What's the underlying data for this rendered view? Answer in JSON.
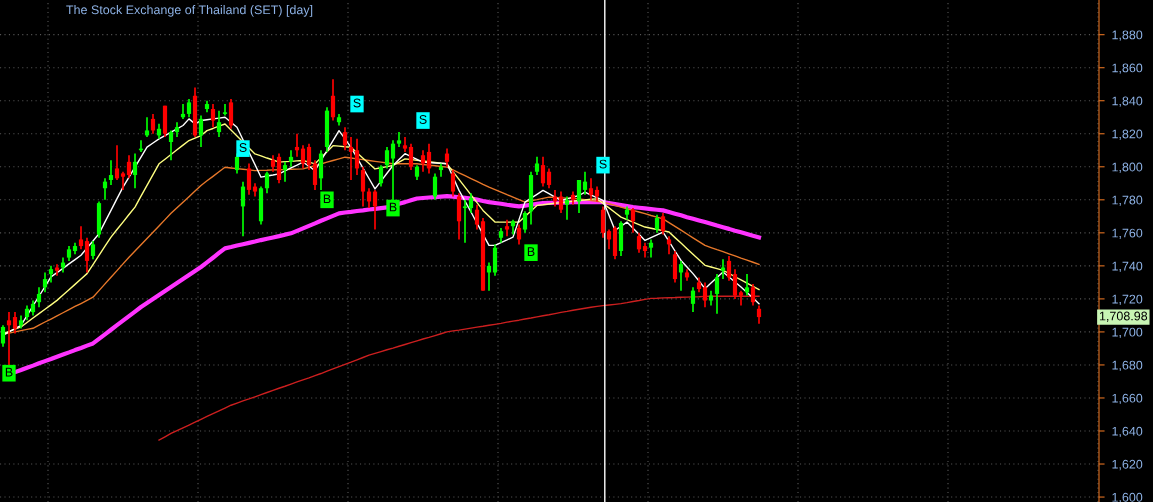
{
  "chart_data": {
    "type": "candlestick",
    "title": "The Stock Exchange of Thailand (SET) [day]",
    "categories": [
      null,
      null,
      null,
      null,
      null,
      null,
      null,
      null,
      null,
      null,
      null,
      null,
      null,
      null,
      null,
      null,
      null,
      null,
      null,
      null,
      null,
      null,
      null,
      null,
      null,
      null,
      null,
      null,
      null,
      null,
      null,
      null,
      null,
      null,
      null,
      null,
      null,
      null,
      null,
      null,
      null,
      null,
      null,
      null,
      null,
      null,
      null,
      null,
      null,
      null,
      null,
      null,
      null,
      null,
      null,
      null,
      null,
      null,
      null,
      null,
      null,
      null,
      null,
      null,
      null,
      null,
      null,
      null,
      null,
      null,
      null,
      null,
      null,
      null,
      null,
      null,
      null,
      null,
      null,
      null,
      null,
      null,
      null,
      null,
      null,
      null,
      null,
      null,
      null,
      null,
      null,
      null,
      null,
      null,
      null,
      null,
      null,
      null,
      null,
      null,
      null,
      null,
      null,
      null,
      null,
      null,
      null,
      null,
      null,
      null,
      null,
      null,
      null,
      null,
      null,
      null,
      null,
      null,
      null,
      null,
      null,
      null,
      null,
      null,
      null,
      null,
      null
    ],
    "ohlc": [
      [
        1693,
        1704,
        1691,
        1703
      ],
      [
        1707,
        1712,
        1679,
        1704
      ],
      [
        1709,
        1712,
        1699,
        1702
      ],
      [
        1704,
        1710,
        1702,
        1707
      ],
      [
        1709,
        1716,
        1707,
        1714
      ],
      [
        1712,
        1719,
        1710,
        1717
      ],
      [
        1718,
        1727,
        1715,
        1723
      ],
      [
        1727,
        1736,
        1724,
        1732
      ],
      [
        1735,
        1740,
        1730,
        1738
      ],
      [
        1739,
        1741,
        1734,
        1737
      ],
      [
        1739,
        1745,
        1736,
        1742
      ],
      [
        1745,
        1752,
        1743,
        1750
      ],
      [
        1749,
        1754,
        1747,
        1752
      ],
      [
        1756,
        1764,
        1750,
        1752
      ],
      [
        1755,
        1757,
        1736,
        1743
      ],
      [
        1746,
        1755,
        1744,
        1753
      ],
      [
        1759,
        1779,
        1757,
        1778
      ],
      [
        1787,
        1793,
        1780,
        1791
      ],
      [
        1792,
        1804,
        1789,
        1795
      ],
      [
        1799,
        1813,
        1792,
        1793
      ],
      [
        1796,
        1797,
        1786,
        1794
      ],
      [
        1803,
        1807,
        1793,
        1795
      ],
      [
        1795,
        1808,
        1787,
        1803
      ],
      [
        1810,
        1816,
        1809,
        1811
      ],
      [
        1819,
        1830,
        1818,
        1822
      ],
      [
        1829,
        1832,
        1820,
        1822
      ],
      [
        1819,
        1826,
        1817,
        1823
      ],
      [
        1837,
        1837,
        1818,
        1820
      ],
      [
        1815,
        1822,
        1804,
        1821
      ],
      [
        1821,
        1827,
        1818,
        1824
      ],
      [
        1830,
        1838,
        1829,
        1832
      ],
      [
        1832,
        1841,
        1830,
        1839
      ],
      [
        1843,
        1848,
        1818,
        1819
      ],
      [
        1819,
        1831,
        1812,
        1829
      ],
      [
        1835,
        1840,
        1833,
        1838
      ],
      [
        1835,
        1838,
        1824,
        1828
      ],
      [
        1821,
        1834,
        1818,
        1827
      ],
      [
        1832,
        1838,
        1831,
        1833
      ],
      [
        1839,
        1841,
        1823,
        1825
      ],
      [
        1798,
        1808,
        1796,
        1806
      ],
      [
        1776,
        1791,
        1758,
        1788
      ],
      [
        1799,
        1802,
        1783,
        1786
      ],
      [
        1788,
        1790,
        1782,
        1785
      ],
      [
        1767,
        1788,
        1765,
        1787
      ],
      [
        1787,
        1797,
        1784,
        1796
      ],
      [
        1804,
        1807,
        1797,
        1800
      ],
      [
        1806,
        1808,
        1790,
        1792
      ],
      [
        1798,
        1803,
        1791,
        1801
      ],
      [
        1803,
        1810,
        1800,
        1806
      ],
      [
        1812,
        1820,
        1806,
        1810
      ],
      [
        1811,
        1813,
        1799,
        1802
      ],
      [
        1812,
        1814,
        1798,
        1801
      ],
      [
        1802,
        1804,
        1786,
        1789
      ],
      [
        1793,
        1810,
        1786,
        1808
      ],
      [
        1812,
        1836,
        1809,
        1834
      ],
      [
        1843,
        1853,
        1828,
        1830
      ],
      [
        1827,
        1832,
        1825,
        1830
      ],
      [
        1821,
        1824,
        1810,
        1813
      ],
      [
        1812,
        1818,
        1792,
        1809
      ],
      [
        1810,
        1817,
        1795,
        1799
      ],
      [
        1798,
        1800,
        1776,
        1785
      ],
      [
        1785,
        1787,
        1775,
        1779
      ],
      [
        1785,
        1786,
        1762,
        1776
      ],
      [
        1790,
        1801,
        1788,
        1800
      ],
      [
        1801,
        1812,
        1799,
        1810
      ],
      [
        1805,
        1816,
        1775,
        1814
      ],
      [
        1814,
        1821,
        1812,
        1816
      ],
      [
        1813,
        1818,
        1809,
        1811
      ],
      [
        1812,
        1814,
        1798,
        1800
      ],
      [
        1794,
        1801,
        1792,
        1800
      ],
      [
        1807,
        1810,
        1797,
        1802
      ],
      [
        1809,
        1814,
        1796,
        1799
      ],
      [
        1782,
        1796,
        1780,
        1794
      ],
      [
        1798,
        1802,
        1794,
        1800
      ],
      [
        1808,
        1811,
        1800,
        1803
      ],
      [
        1796,
        1798,
        1782,
        1785
      ],
      [
        1782,
        1784,
        1756,
        1767
      ],
      [
        1775,
        1780,
        1754,
        1776
      ],
      [
        1775,
        1784,
        1772,
        1781
      ],
      [
        1774,
        1777,
        1762,
        1765
      ],
      [
        1767,
        1769,
        1725,
        1725
      ],
      [
        1736,
        1742,
        1725,
        1740
      ],
      [
        1736,
        1753,
        1734,
        1751
      ],
      [
        1757,
        1763,
        1754,
        1761
      ],
      [
        1764,
        1768,
        1758,
        1762
      ],
      [
        1764,
        1768,
        1759,
        1767
      ],
      [
        1763,
        1765,
        1753,
        1756
      ],
      [
        1762,
        1773,
        1760,
        1772
      ],
      [
        1773,
        1797,
        1765,
        1795
      ],
      [
        1797,
        1806,
        1795,
        1802
      ],
      [
        1801,
        1806,
        1788,
        1790
      ],
      [
        1797,
        1799,
        1787,
        1789
      ],
      [
        1782,
        1786,
        1776,
        1779
      ],
      [
        1782,
        1785,
        1772,
        1774
      ],
      [
        1777,
        1782,
        1768,
        1780
      ],
      [
        1783,
        1785,
        1777,
        1780
      ],
      [
        1779,
        1792,
        1772,
        1792
      ],
      [
        1786,
        1797,
        1783,
        1791
      ],
      [
        1787,
        1793,
        1780,
        1783
      ],
      [
        1786,
        1788,
        1779,
        1782
      ],
      [
        1774,
        1776,
        1757,
        1760
      ],
      [
        1761,
        1762,
        1750,
        1756
      ],
      [
        1763,
        1764,
        1744,
        1746
      ],
      [
        1749,
        1767,
        1746,
        1766
      ],
      [
        1771,
        1776,
        1768,
        1774
      ],
      [
        1774,
        1775,
        1760,
        1767
      ],
      [
        1758,
        1760,
        1748,
        1750
      ],
      [
        1752,
        1754,
        1745,
        1749
      ],
      [
        1751,
        1756,
        1745,
        1754
      ],
      [
        1762,
        1771,
        1760,
        1769
      ],
      [
        1770,
        1772,
        1759,
        1761
      ],
      [
        1756,
        1758,
        1747,
        1753
      ],
      [
        1747,
        1749,
        1730,
        1732
      ],
      [
        1736,
        1743,
        1725,
        1741
      ],
      [
        1736,
        1738,
        1731,
        1733
      ],
      [
        1717,
        1727,
        1712,
        1725
      ],
      [
        1730,
        1733,
        1724,
        1726
      ],
      [
        1727,
        1730,
        1715,
        1719
      ],
      [
        1719,
        1725,
        1716,
        1722
      ],
      [
        1723,
        1735,
        1711,
        1733
      ],
      [
        1737,
        1744,
        1732,
        1739
      ],
      [
        1743,
        1746,
        1731,
        1733
      ],
      [
        1735,
        1738,
        1720,
        1722
      ],
      [
        1724,
        1725,
        1716,
        1722
      ],
      [
        1724,
        1735,
        1722,
        1727
      ],
      [
        1727,
        1729,
        1716,
        1718
      ],
      [
        1714,
        1716,
        1705,
        1708.98
      ]
    ],
    "series": [
      {
        "type": "line",
        "color": "#cc1f1f",
        "values": [
          null,
          null,
          null,
          null,
          null,
          null,
          null,
          null,
          null,
          null,
          null,
          null,
          null,
          null,
          null,
          null,
          null,
          null,
          null,
          null,
          null,
          null,
          null,
          null,
          null,
          null,
          1634.5,
          1636.5,
          1638.5,
          1640.2,
          1641.9,
          1643.6,
          1645.3,
          1647.1,
          1648.8,
          1650.5,
          1652.2,
          1653.9,
          1655.6,
          1656.9,
          1658.2,
          1659.4,
          1660.7,
          1662.0,
          1663.3,
          1664.6,
          1665.9,
          1667.1,
          1668.4,
          1669.7,
          1671.0,
          1672.2,
          1673.5,
          1674.8,
          1676.2,
          1677.6,
          1679.0,
          1680.4,
          1681.7,
          1683.1,
          1684.5,
          1685.9,
          1687.0,
          1688.1,
          1689.2,
          1690.2,
          1691.3,
          1692.4,
          1693.5,
          1694.6,
          1695.7,
          1696.7,
          1697.8,
          1698.9,
          1700.0,
          1700.6,
          1701.1,
          1701.7,
          1702.3,
          1702.9,
          1703.4,
          1704.0,
          1704.6,
          1705.2,
          1705.9,
          1706.5,
          1707.1,
          1707.8,
          1708.4,
          1709.1,
          1709.8,
          1710.4,
          1711.1,
          1711.8,
          1712.4,
          1713.1,
          1713.7,
          1714.3,
          1714.9,
          1715.5,
          1715.9,
          1716.3,
          1716.7,
          1717.1,
          1717.7,
          1718.4,
          1719.0,
          1719.7,
          1720.3,
          1720.4,
          1720.6,
          1720.7,
          1720.8,
          1721.0,
          1721.1,
          1721.2,
          1721.3,
          1721.5,
          1721.6,
          1721.6,
          1721.6,
          1721.6,
          1721.6,
          1721.6,
          1721.6,
          1721.6,
          1721.6
        ]
      },
      {
        "type": "line",
        "color": "#ff33ff",
        "values": [
          null,
          null,
          1675.6,
          1676.9,
          1678.3,
          1679.6,
          1681.0,
          1682.3,
          1683.6,
          1685.0,
          1686.3,
          1687.6,
          1689.0,
          1690.3,
          1691.7,
          1693.0,
          1695.8,
          1698.5,
          1701.3,
          1704.1,
          1706.8,
          1709.6,
          1712.3,
          1715.1,
          1717.5,
          1719.9,
          1722.4,
          1724.8,
          1727.2,
          1729.6,
          1732.0,
          1734.5,
          1736.9,
          1739.3,
          1742.1,
          1744.9,
          1747.8,
          1750.6,
          1751.4,
          1752.3,
          1753.1,
          1753.9,
          1754.7,
          1755.6,
          1756.4,
          1757.2,
          1758.0,
          1758.9,
          1759.7,
          1761.2,
          1762.7,
          1764.2,
          1765.7,
          1767.3,
          1768.8,
          1770.3,
          1771.8,
          1772.3,
          1772.7,
          1773.2,
          1773.6,
          1774.1,
          1774.5,
          1775.0,
          1775.4,
          null,
          1777.6,
          1778.6,
          1779.7,
          1780.8,
          1781.1,
          1781.4,
          1781.6,
          1781.9,
          1782.2,
          1781.9,
          1781.5,
          1781.2,
          1780.8,
          1780.1,
          1779.3,
          1778.6,
          1778.1,
          1777.6,
          1777.0,
          1776.5,
          1776.0,
          1776.5,
          1777.0,
          1777.5,
          1778.0,
          1778.1,
          1778.2,
          1778.3,
          1778.4,
          1778.5,
          1778.6,
          1778.6,
          1778.6,
          1778.6,
          1778.6,
          1778.0,
          1777.4,
          1776.8,
          1776.2,
          1775.6,
          1775.2,
          1774.8,
          1774.4,
          1774.0,
          1773.6,
          1772.6,
          1771.6,
          1770.6,
          1769.5,
          1768.5,
          1767.5,
          1766.5,
          1765.5,
          1764.4,
          1763.4,
          1762.4,
          1761.3,
          1760.3,
          1759.3,
          1758.2,
          1757.2
        ]
      },
      {
        "type": "line",
        "color": "#e8782a",
        "values": [
          1698.6,
          1699.3,
          1700.0,
          1700.8,
          1701.5,
          1702.2,
          1704.1,
          1706.0,
          1707.8,
          1709.7,
          1711.6,
          1713.5,
          1715.4,
          1717.2,
          1719.1,
          1721.0,
          1725.0,
          1729.1,
          1733.1,
          1737.1,
          1741.2,
          1745.2,
          1749.0,
          1752.8,
          1756.6,
          1760.4,
          1764.2,
          1768.0,
          1771.8,
          1775.2,
          1778.5,
          1781.9,
          1785.3,
          1788.7,
          1791.5,
          1794.2,
          1797.0,
          1799.7,
          1799.3,
          1798.9,
          1798.5,
          1798.1,
          1797.7,
          1797.8,
          1797.9,
          1798.1,
          1798.2,
          1798.3,
          1798.5,
          1798.6,
          1798.7,
          1799.7,
          1800.7,
          1801.7,
          1802.8,
          1803.8,
          1804.8,
          1805.8,
          1805.3,
          1804.8,
          1804.3,
          1803.8,
          1803.3,
          1802.8,
          1802.3,
          1801.8,
          1801.8,
          1801.8,
          1801.8,
          1801.8,
          1801.4,
          1801.0,
          1800.6,
          1800.2,
          1799.8,
          1798.1,
          1796.3,
          1794.6,
          1792.9,
          1791.2,
          1789.4,
          1787.7,
          1786.2,
          1784.7,
          1783.1,
          1781.6,
          1780.1,
          1778.6,
          1779.4,
          1780.1,
          1780.9,
          1781.6,
          1781.4,
          1781.2,
          1781.0,
          1780.8,
          1780.6,
          1780.1,
          1779.6,
          1779.1,
          1778.6,
          1777.6,
          1776.6,
          1775.6,
          1774.6,
          1773.6,
          1772.6,
          1771.6,
          1770.5,
          1769.5,
          1768.5,
          1766.2,
          1763.9,
          1761.6,
          1759.3,
          1757.0,
          1754.7,
          1752.4,
          1751.1,
          1749.8,
          1748.6,
          1747.3,
          1746.0,
          1744.7,
          1743.5,
          1742.2,
          1740.9
        ]
      },
      {
        "type": "line",
        "color": "#ffff80",
        "values": [
          1699.0,
          1700.3,
          1701.7,
          1703.0,
          1705.7,
          1708.4,
          1711.1,
          1713.7,
          1716.4,
          1719.1,
          1722.3,
          1725.6,
          1728.8,
          1732.1,
          1735.3,
          1740.8,
          1746.4,
          1751.9,
          1757.4,
          1762.0,
          1766.5,
          1771.1,
          1775.6,
          1782.2,
          1788.7,
          1795.3,
          1801.8,
          1804.6,
          1807.4,
          1810.3,
          1813.1,
          1815.9,
          1817.4,
          1818.9,
          1821.9,
          1823.2,
          1824.6,
          1825.9,
          1822.3,
          1818.7,
          1815.0,
          1811.4,
          1807.8,
          1806.6,
          1805.3,
          1804.1,
          1802.8,
          1803.1,
          1803.3,
          1803.6,
          1803.8,
          1802.8,
          1801.8,
          1805.5,
          1809.1,
          1812.8,
          1812.5,
          1812.1,
          1811.8,
          1808.5,
          1805.2,
          1802.0,
          1798.7,
          1799.4,
          1800.1,
          1800.8,
          1802.8,
          1804.8,
          1804.4,
          1803.9,
          1803.5,
          1803.1,
          1802.7,
          1802.2,
          1801.8,
          1797.1,
          1792.4,
          1787.7,
          1783.0,
          1778.3,
          1773.6,
          1770.1,
          1766.5,
          1766.5,
          1766.5,
          1766.5,
          1766.5,
          1769.9,
          1773.2,
          1776.6,
          1777.0,
          1777.5,
          1777.9,
          1778.3,
          1778.7,
          1779.2,
          1779.6,
          1779.9,
          1780.3,
          1780.6,
          1777.8,
          1775.1,
          1772.3,
          1769.5,
          1768.0,
          1766.5,
          1765.0,
          1763.5,
          1762.8,
          1762.0,
          1761.3,
          1760.5,
          1757.1,
          1753.8,
          1750.4,
          1747.0,
          1743.7,
          1740.3,
          1739.3,
          1738.3,
          1737.3,
          1735.4,
          1733.4,
          1731.5,
          1729.5,
          1727.6,
          1725.6
        ]
      },
      {
        "type": "line",
        "color": "#ffffff",
        "values": [
          1698.0,
          1700.0,
          1702.0,
          1704.0,
          1709.9,
          1715.7,
          1721.6,
          1727.4,
          1733.3,
          1735.9,
          1738.5,
          1741.2,
          1743.8,
          1746.4,
          1750.8,
          1755.1,
          1759.5,
          1766.6,
          1773.6,
          1780.7,
          1787.7,
          1793.8,
          1799.8,
          1805.9,
          1811.9,
          1814.4,
          1816.9,
          1818.9,
          1821.0,
          1823.0,
          1825.0,
          1829.0,
          1826.0,
          1828.0,
          1828.5,
          1829.0,
          1829.5,
          1830.0,
          1827.0,
          1823.9,
          1816.4,
          1808.8,
          1801.3,
          1793.7,
          1794.4,
          1795.0,
          1795.7,
          1797.5,
          1799.3,
          1801.0,
          1802.8,
          1800.3,
          1797.7,
          1803.8,
          1809.8,
          1815.9,
          1821.9,
          1816.9,
          1811.8,
          1805.5,
          1799.2,
          1792.9,
          1786.6,
          1791.3,
          1796.1,
          1800.8,
          1804.4,
          1807.9,
          1806.2,
          1804.5,
          1802.8,
          1802.6,
          1802.3,
          1802.1,
          1801.8,
          1793.8,
          1785.7,
          1779.2,
          1772.6,
          1765.9,
          1759.1,
          1752.4,
          1752.4,
          1754.1,
          1755.7,
          1757.4,
          1768.0,
          1778.6,
          1781.0,
          1783.3,
          1785.7,
          1783.7,
          1781.6,
          1779.6,
          1780.6,
          1781.6,
          1782.6,
          1784.6,
          1782.9,
          1781.3,
          1779.6,
          1770.6,
          1761.5,
          1764.0,
          1766.5,
          1762.8,
          1759.1,
          1755.4,
          1757.1,
          1758.8,
          1760.5,
          1754.8,
          1749.0,
          1743.3,
          1739.3,
          1735.3,
          1730.8,
          1726.2,
          1729.6,
          1732.9,
          1736.3,
          1733.3,
          1730.2,
          1727.2,
          1723.8,
          1720.5,
          1717.1
        ]
      },
      {
        "type": "scatter",
        "color": "#00ffff",
        "values": [
          null,
          null,
          null,
          null,
          null,
          null,
          null,
          null,
          null,
          null,
          null,
          null,
          null,
          null,
          null,
          null,
          null,
          null,
          null,
          null,
          null,
          null,
          null,
          null,
          null,
          null,
          null,
          null,
          null,
          null,
          null,
          null,
          null,
          null,
          null,
          null,
          null,
          null,
          null,
          null,
          1811,
          null,
          null,
          null,
          null,
          null,
          null,
          null,
          null,
          null,
          null,
          null,
          null,
          null,
          null,
          null,
          null,
          null,
          null,
          1838,
          null,
          null,
          null,
          null,
          null,
          null,
          null,
          null,
          null,
          null,
          1828,
          null,
          null,
          null,
          null,
          null,
          null,
          null,
          null,
          null,
          null,
          null,
          null,
          null,
          null,
          null,
          null,
          null,
          null,
          null,
          null,
          null,
          null,
          null,
          null,
          null,
          null,
          null,
          null,
          null,
          1801,
          null,
          null,
          null,
          null,
          null,
          null,
          null,
          null,
          null,
          null,
          null,
          null,
          null,
          null,
          null,
          null,
          null,
          null,
          null,
          null,
          null,
          null,
          null,
          null,
          null,
          null
        ],
        "value_labels": [
          null,
          null,
          null,
          null,
          null,
          null,
          null,
          null,
          null,
          null,
          null,
          null,
          null,
          null,
          null,
          null,
          null,
          null,
          null,
          null,
          null,
          null,
          null,
          null,
          null,
          null,
          null,
          null,
          null,
          null,
          null,
          null,
          null,
          null,
          null,
          null,
          null,
          null,
          null,
          null,
          "S",
          null,
          null,
          null,
          null,
          null,
          null,
          null,
          null,
          null,
          null,
          null,
          null,
          null,
          null,
          null,
          null,
          null,
          null,
          "S",
          null,
          null,
          null,
          null,
          null,
          null,
          null,
          null,
          null,
          null,
          "S",
          null,
          null,
          null,
          null,
          null,
          null,
          null,
          null,
          null,
          null,
          null,
          null,
          null,
          null,
          null,
          null,
          null,
          null,
          null,
          null,
          null,
          null,
          null,
          null,
          null,
          null,
          null,
          null,
          null,
          "S",
          null,
          null,
          null,
          null,
          null,
          null,
          null,
          null,
          null,
          null,
          null,
          null,
          null,
          null,
          null,
          null,
          null,
          null,
          null,
          null,
          null,
          null,
          null,
          null,
          null,
          null
        ]
      },
      {
        "type": "scatter",
        "color": "#00ff00",
        "values": [
          null,
          1675,
          null,
          null,
          null,
          null,
          null,
          null,
          null,
          null,
          null,
          null,
          null,
          null,
          null,
          null,
          null,
          null,
          null,
          null,
          null,
          null,
          null,
          null,
          null,
          null,
          null,
          null,
          null,
          null,
          null,
          null,
          null,
          null,
          null,
          null,
          null,
          null,
          null,
          null,
          null,
          null,
          null,
          null,
          null,
          null,
          null,
          null,
          null,
          null,
          null,
          null,
          null,
          null,
          1780,
          null,
          null,
          null,
          null,
          null,
          null,
          null,
          null,
          null,
          null,
          1775,
          null,
          null,
          null,
          null,
          null,
          null,
          null,
          null,
          null,
          null,
          null,
          null,
          null,
          null,
          null,
          null,
          null,
          null,
          null,
          null,
          null,
          null,
          1748,
          null,
          null,
          null,
          null,
          null,
          null,
          null,
          null,
          null,
          null,
          null,
          null,
          null,
          null,
          null,
          null,
          null,
          null,
          null,
          null,
          null,
          null,
          null,
          null,
          null,
          null,
          null,
          null,
          null,
          null,
          null,
          null,
          null,
          null,
          null,
          null,
          null,
          null
        ],
        "value_labels": [
          null,
          "B",
          null,
          null,
          null,
          null,
          null,
          null,
          null,
          null,
          null,
          null,
          null,
          null,
          null,
          null,
          null,
          null,
          null,
          null,
          null,
          null,
          null,
          null,
          null,
          null,
          null,
          null,
          null,
          null,
          null,
          null,
          null,
          null,
          null,
          null,
          null,
          null,
          null,
          null,
          null,
          null,
          null,
          null,
          null,
          null,
          null,
          null,
          null,
          null,
          null,
          null,
          null,
          null,
          "B",
          null,
          null,
          null,
          null,
          null,
          null,
          null,
          null,
          null,
          null,
          "B",
          null,
          null,
          null,
          null,
          null,
          null,
          null,
          null,
          null,
          null,
          null,
          null,
          null,
          null,
          null,
          null,
          null,
          null,
          null,
          null,
          null,
          null,
          "B",
          null,
          null,
          null,
          null,
          null,
          null,
          null,
          null,
          null,
          null,
          null,
          null,
          null,
          null,
          null,
          null,
          null,
          null,
          null,
          null,
          null,
          null,
          null,
          null,
          null,
          null,
          null,
          null,
          null,
          null,
          null,
          null,
          null,
          null,
          null,
          null,
          null,
          null
        ]
      }
    ],
    "annotations": [
      "1,708.98"
    ],
    "ylim": [
      1597,
      1901
    ],
    "yticks": [
      {
        "value": 1600,
        "label": "1,600"
      },
      {
        "value": 1620,
        "label": "1,620"
      },
      {
        "value": 1640,
        "label": "1,640"
      },
      {
        "value": 1660,
        "label": "1,660"
      },
      {
        "value": 1680,
        "label": "1,680"
      },
      {
        "value": 1700,
        "label": "1,700"
      },
      {
        "value": 1720,
        "label": "1,720"
      },
      {
        "value": 1740,
        "label": "1,740"
      },
      {
        "value": 1760,
        "label": "1,760"
      },
      {
        "value": 1780,
        "label": "1,780"
      },
      {
        "value": 1800,
        "label": "1,800"
      },
      {
        "value": 1820,
        "label": "1,820"
      },
      {
        "value": 1840,
        "label": "1,840"
      },
      {
        "value": 1860,
        "label": "1,860"
      },
      {
        "value": 1880,
        "label": "1,880"
      }
    ],
    "tick_labels": "y",
    "grid": true
  }
}
